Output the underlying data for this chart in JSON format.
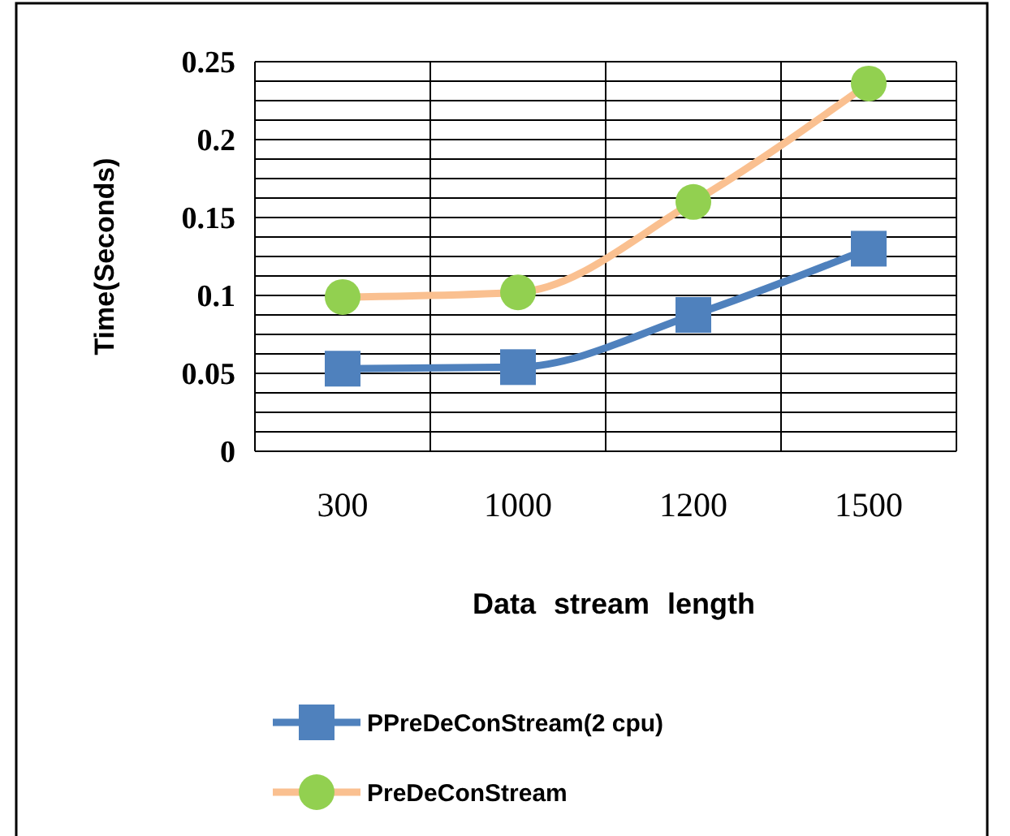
{
  "chart_data": {
    "type": "line",
    "xlabel": "Data stream length",
    "ylabel": "Time(Seconds)",
    "categories": [
      "300",
      "1000",
      "1200",
      "1500"
    ],
    "series": [
      {
        "name": "PPreDeConStream(2 cpu)",
        "color": "#4f81bd",
        "marker": "square",
        "values": [
          0.053,
          0.054,
          0.0875,
          0.13
        ]
      },
      {
        "name": "PreDeConStream",
        "color": "#fac090",
        "colors": [
          "#92d050",
          "#92d050",
          "#92d050",
          "#92d050"
        ],
        "marker": "circle",
        "values": [
          0.099,
          0.102,
          0.16,
          0.236
        ]
      }
    ],
    "ylim": [
      0,
      0.25
    ],
    "yticks": [
      0,
      {
        "value": 0.0125,
        "label": null
      },
      {
        "value": 0.025,
        "label": null
      },
      {
        "value": 0.0375,
        "label": null
      },
      0.05,
      {
        "value": 0.0625,
        "label": null
      },
      {
        "value": 0.075,
        "label": null
      },
      {
        "value": 0.0875,
        "label": null
      },
      0.1,
      {
        "value": 0.1125,
        "label": null
      },
      {
        "value": 0.125,
        "label": null
      },
      {
        "value": 0.1375,
        "label": null
      },
      0.15,
      {
        "value": 0.1625,
        "label": null
      },
      {
        "value": 0.175,
        "label": null
      },
      {
        "value": 0.1875,
        "label": null
      },
      0.2,
      {
        "value": 0.2125,
        "label": null
      },
      {
        "value": 0.225,
        "label": null
      },
      {
        "value": 0.2375,
        "label": null
      },
      0.25
    ],
    "grid": true,
    "legend": "bottom",
    "line_style": "solid"
  }
}
